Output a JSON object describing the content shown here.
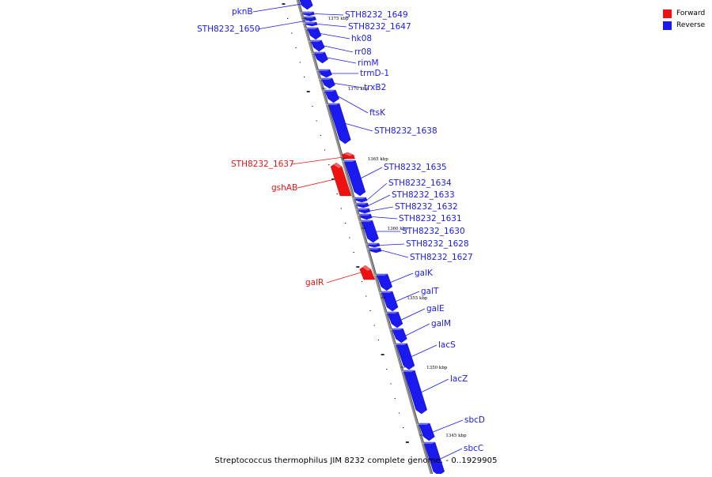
{
  "colors": {
    "forward": "#ee1111",
    "reverse": "#1a1af0",
    "backbone": "#909090"
  },
  "legend": {
    "forward": "Forward",
    "reverse": "Reverse"
  },
  "caption": "Streptococcus thermophilus JIM 8232 complete genome. - 0..1929905",
  "ticks": [
    {
      "text": "1375 kbp"
    },
    {
      "text": "1370 kbp"
    },
    {
      "text": "1365 kbp"
    },
    {
      "text": "1360 kbp"
    },
    {
      "text": "1355 kbp"
    },
    {
      "text": "1350 kbp"
    },
    {
      "text": "1345 kbp"
    }
  ],
  "genes": [
    {
      "name": "pknB",
      "strand": "reverse"
    },
    {
      "name": "STH8232_1649",
      "strand": "reverse"
    },
    {
      "name": "STH8232_1650",
      "strand": "reverse"
    },
    {
      "name": "STH8232_1647",
      "strand": "reverse"
    },
    {
      "name": "hk08",
      "strand": "reverse"
    },
    {
      "name": "rr08",
      "strand": "reverse"
    },
    {
      "name": "rimM",
      "strand": "reverse"
    },
    {
      "name": "trmD-1",
      "strand": "reverse"
    },
    {
      "name": "trxB2",
      "strand": "reverse"
    },
    {
      "name": "ftsK",
      "strand": "reverse"
    },
    {
      "name": "STH8232_1638",
      "strand": "reverse"
    },
    {
      "name": "STH8232_1637",
      "strand": "forward"
    },
    {
      "name": "STH8232_1635",
      "strand": "reverse"
    },
    {
      "name": "gshAB",
      "strand": "forward"
    },
    {
      "name": "STH8232_1634",
      "strand": "reverse"
    },
    {
      "name": "STH8232_1633",
      "strand": "reverse"
    },
    {
      "name": "STH8232_1632",
      "strand": "reverse"
    },
    {
      "name": "STH8232_1631",
      "strand": "reverse"
    },
    {
      "name": "STH8232_1630",
      "strand": "reverse"
    },
    {
      "name": "STH8232_1628",
      "strand": "reverse"
    },
    {
      "name": "STH8232_1627",
      "strand": "reverse"
    },
    {
      "name": "galK",
      "strand": "reverse"
    },
    {
      "name": "galR",
      "strand": "forward"
    },
    {
      "name": "galT",
      "strand": "reverse"
    },
    {
      "name": "galE",
      "strand": "reverse"
    },
    {
      "name": "galM",
      "strand": "reverse"
    },
    {
      "name": "lacS",
      "strand": "reverse"
    },
    {
      "name": "lacZ",
      "strand": "reverse"
    },
    {
      "name": "sbcD",
      "strand": "reverse"
    },
    {
      "name": "sbcC",
      "strand": "reverse"
    }
  ]
}
